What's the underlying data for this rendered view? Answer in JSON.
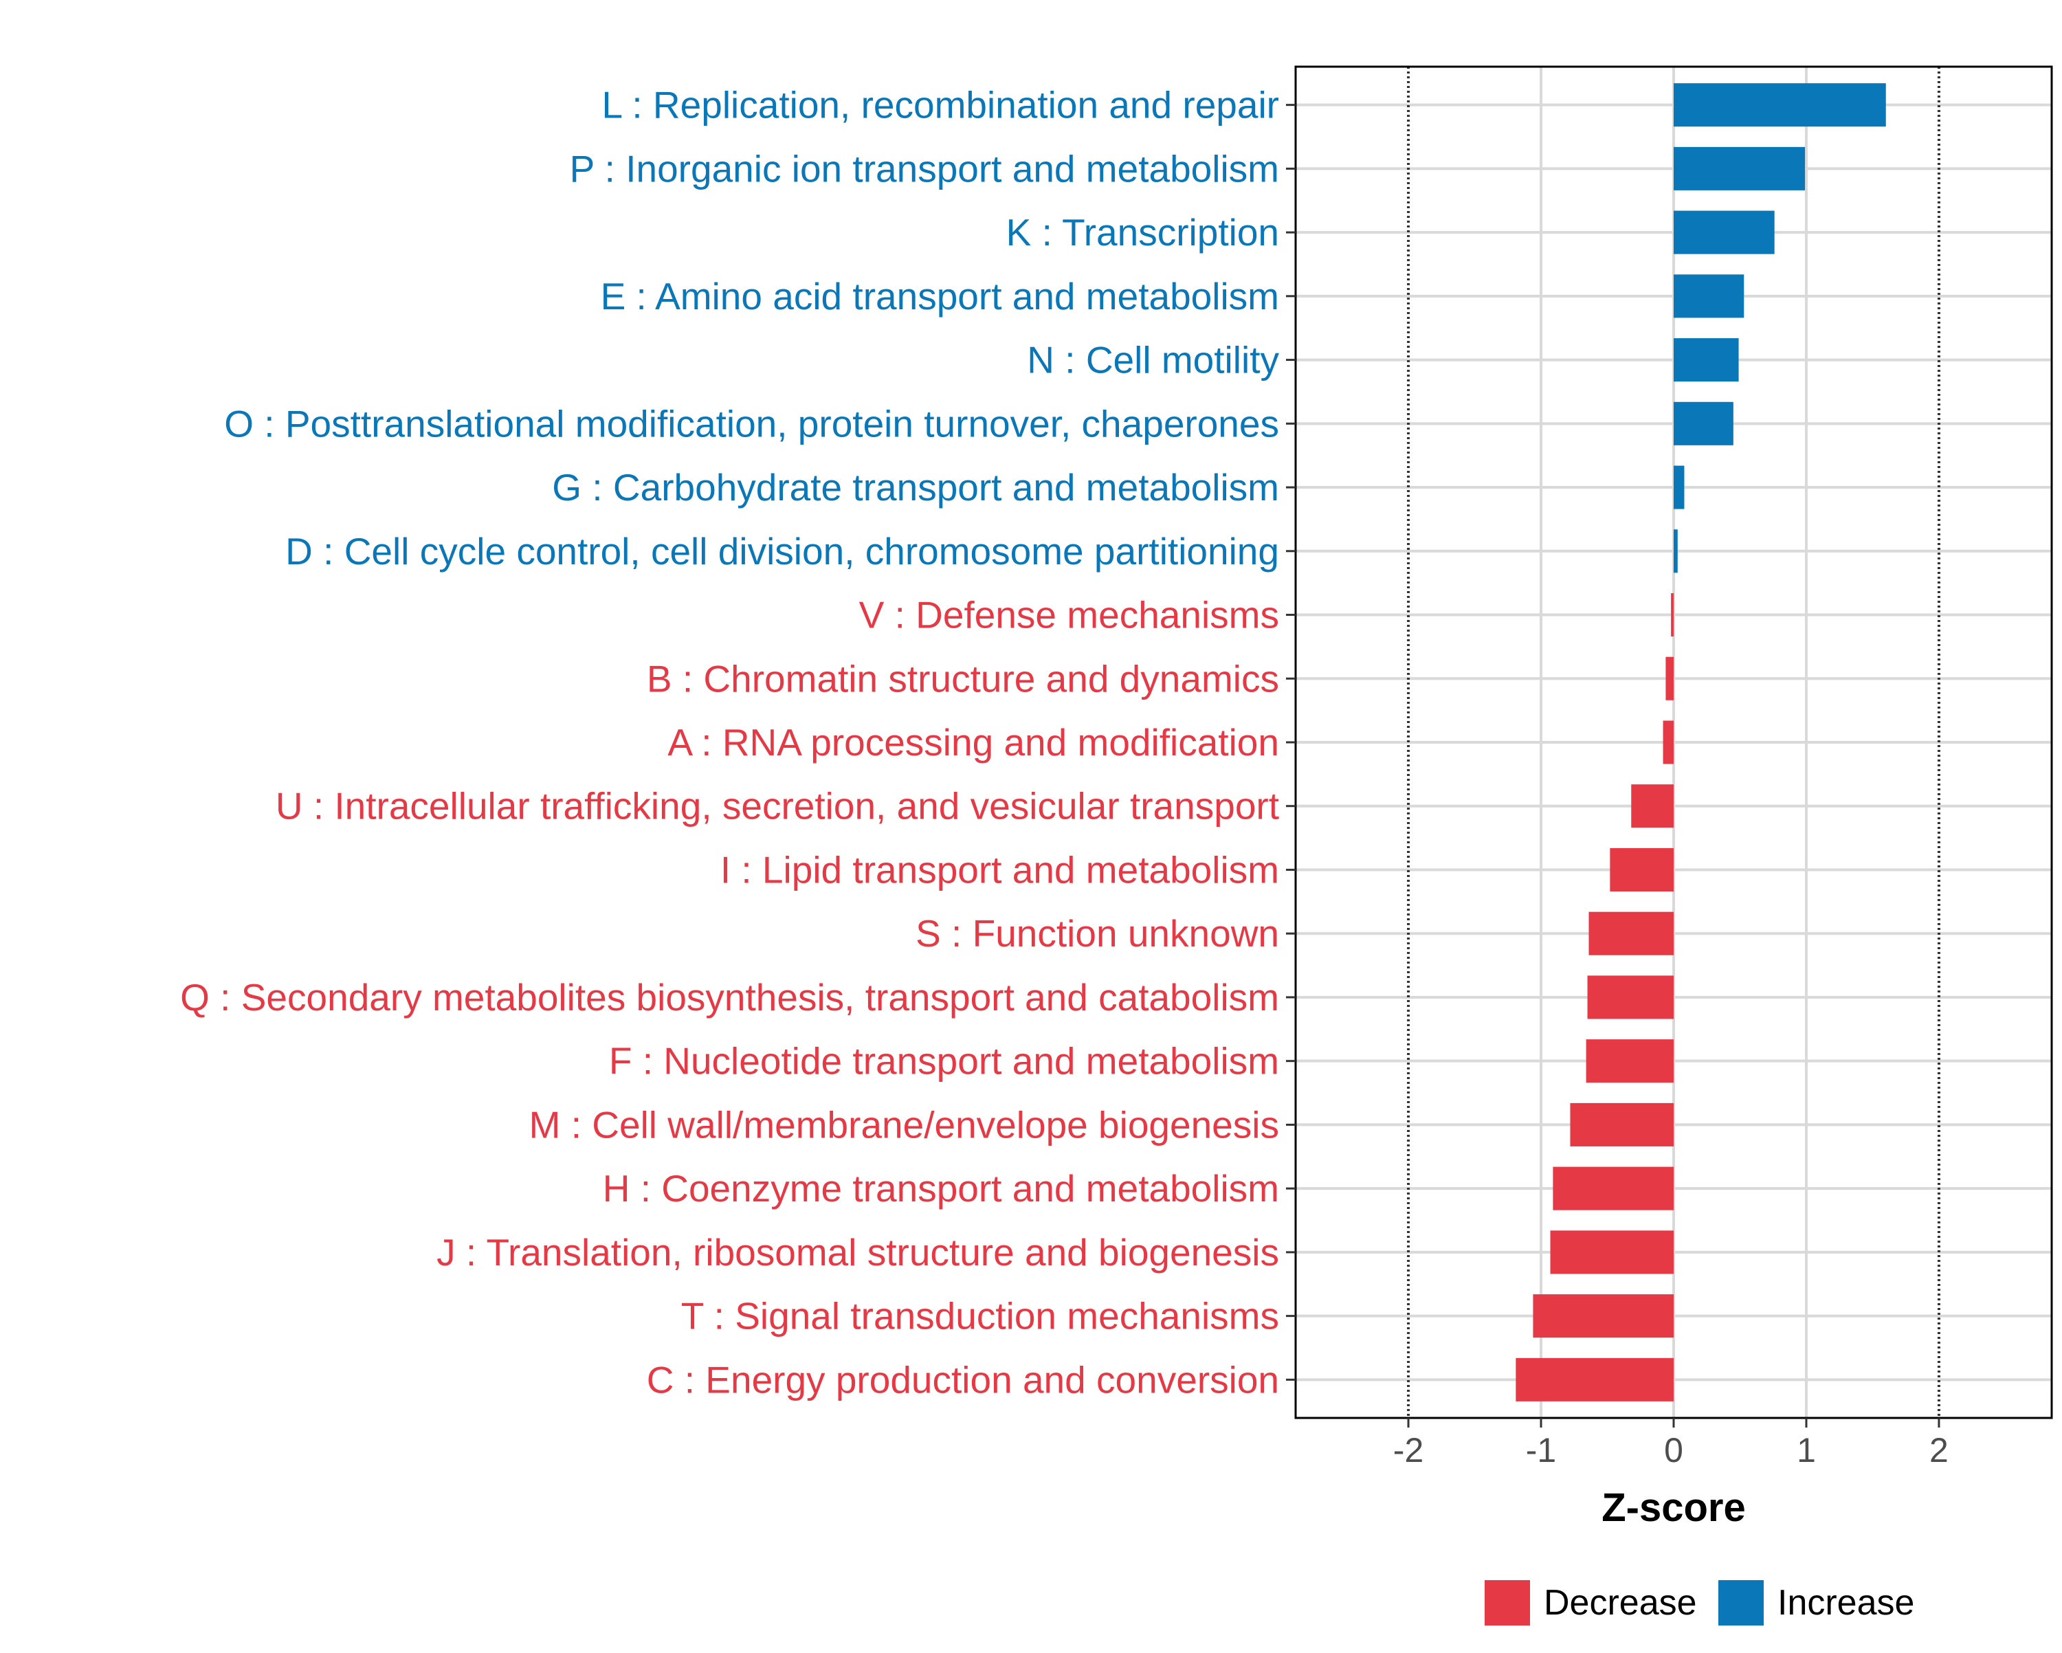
{
  "chart_data": {
    "type": "bar",
    "orientation": "horizontal",
    "title": "",
    "xlabel": "Z-score",
    "ylabel": "",
    "xlim": [
      -2.85,
      2.85
    ],
    "xticks": [
      -2,
      -1,
      0,
      1,
      2
    ],
    "xtick_labels": [
      "-2",
      "-1",
      "0",
      "1",
      "2"
    ],
    "reference_lines": [
      -2,
      2
    ],
    "grid": true,
    "colors": {
      "Increase": "#0a77b8",
      "Decrease": "#e63946"
    },
    "legend": {
      "position": "bottom",
      "entries": [
        {
          "label": "Decrease",
          "color": "#e63946"
        },
        {
          "label": "Increase",
          "color": "#0a77b8"
        }
      ]
    },
    "categories": [
      "L : Replication, recombination and repair",
      "P : Inorganic ion transport and metabolism",
      "K : Transcription",
      "E : Amino acid transport and metabolism",
      "N : Cell motility",
      "O : Posttranslational modification, protein turnover, chaperones",
      "G : Carbohydrate transport and metabolism",
      "D : Cell cycle control, cell division, chromosome partitioning",
      "V : Defense mechanisms",
      "B : Chromatin structure and dynamics",
      "A : RNA processing and modification",
      "U : Intracellular trafficking, secretion, and vesicular transport",
      "I : Lipid transport and metabolism",
      "S : Function unknown",
      "Q : Secondary metabolites biosynthesis, transport and catabolism",
      "F : Nucleotide transport and metabolism",
      "M : Cell wall/membrane/envelope biogenesis",
      "H : Coenzyme transport and metabolism",
      "J : Translation, ribosomal structure and biogenesis",
      "T : Signal transduction mechanisms",
      "C : Energy production and conversion"
    ],
    "values": [
      1.6,
      0.99,
      0.76,
      0.53,
      0.49,
      0.45,
      0.08,
      0.03,
      -0.02,
      -0.06,
      -0.08,
      -0.32,
      -0.48,
      -0.64,
      -0.65,
      -0.66,
      -0.78,
      -0.91,
      -0.93,
      -1.06,
      -1.19
    ],
    "groups": [
      "Increase",
      "Increase",
      "Increase",
      "Increase",
      "Increase",
      "Increase",
      "Increase",
      "Increase",
      "Decrease",
      "Decrease",
      "Decrease",
      "Decrease",
      "Decrease",
      "Decrease",
      "Decrease",
      "Decrease",
      "Decrease",
      "Decrease",
      "Decrease",
      "Decrease",
      "Decrease"
    ]
  }
}
